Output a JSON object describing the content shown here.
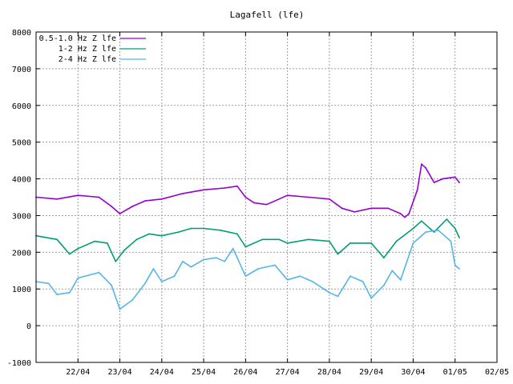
{
  "chart_data": {
    "type": "line",
    "title": "Lagafell (lfe)",
    "xlabel": "",
    "ylabel": "",
    "ylim": [
      -1000,
      8000
    ],
    "yticks": [
      -1000,
      0,
      1000,
      2000,
      3000,
      4000,
      5000,
      6000,
      7000,
      8000
    ],
    "xlim_days": [
      21.0,
      32.0
    ],
    "xticks": [
      {
        "label": "22/04",
        "day": 22
      },
      {
        "label": "23/04",
        "day": 23
      },
      {
        "label": "24/04",
        "day": 24
      },
      {
        "label": "25/04",
        "day": 25
      },
      {
        "label": "26/04",
        "day": 26
      },
      {
        "label": "27/04",
        "day": 27
      },
      {
        "label": "28/04",
        "day": 28
      },
      {
        "label": "29/04",
        "day": 29
      },
      {
        "label": "30/04",
        "day": 30
      },
      {
        "label": "01/05",
        "day": 31
      },
      {
        "label": "02/05",
        "day": 32
      }
    ],
    "grid": true,
    "legend_position": "top-left",
    "series": [
      {
        "name": "0.5-1.0 Hz Z lfe",
        "color": "#9400d3",
        "points": [
          [
            21.0,
            3500
          ],
          [
            21.5,
            3450
          ],
          [
            22.0,
            3550
          ],
          [
            22.5,
            3500
          ],
          [
            22.8,
            3250
          ],
          [
            23.0,
            3050
          ],
          [
            23.3,
            3250
          ],
          [
            23.6,
            3400
          ],
          [
            24.0,
            3450
          ],
          [
            24.5,
            3600
          ],
          [
            25.0,
            3700
          ],
          [
            25.5,
            3750
          ],
          [
            25.8,
            3800
          ],
          [
            26.0,
            3500
          ],
          [
            26.2,
            3350
          ],
          [
            26.5,
            3300
          ],
          [
            27.0,
            3550
          ],
          [
            27.5,
            3500
          ],
          [
            28.0,
            3450
          ],
          [
            28.3,
            3200
          ],
          [
            28.6,
            3100
          ],
          [
            29.0,
            3200
          ],
          [
            29.4,
            3200
          ],
          [
            29.7,
            3050
          ],
          [
            29.8,
            2950
          ],
          [
            29.9,
            3050
          ],
          [
            30.1,
            3700
          ],
          [
            30.2,
            4400
          ],
          [
            30.3,
            4300
          ],
          [
            30.5,
            3900
          ],
          [
            30.7,
            4000
          ],
          [
            31.0,
            4050
          ],
          [
            31.1,
            3900
          ]
        ]
      },
      {
        "name": "1-2 Hz Z lfe",
        "color": "#009e73",
        "points": [
          [
            21.0,
            2450
          ],
          [
            21.5,
            2350
          ],
          [
            21.8,
            1950
          ],
          [
            22.0,
            2100
          ],
          [
            22.4,
            2300
          ],
          [
            22.7,
            2250
          ],
          [
            22.9,
            1750
          ],
          [
            23.1,
            2050
          ],
          [
            23.4,
            2350
          ],
          [
            23.7,
            2500
          ],
          [
            24.0,
            2450
          ],
          [
            24.4,
            2550
          ],
          [
            24.7,
            2650
          ],
          [
            25.0,
            2650
          ],
          [
            25.4,
            2600
          ],
          [
            25.8,
            2500
          ],
          [
            26.0,
            2150
          ],
          [
            26.4,
            2350
          ],
          [
            26.8,
            2350
          ],
          [
            27.0,
            2250
          ],
          [
            27.5,
            2350
          ],
          [
            28.0,
            2300
          ],
          [
            28.2,
            1950
          ],
          [
            28.5,
            2250
          ],
          [
            29.0,
            2250
          ],
          [
            29.3,
            1850
          ],
          [
            29.6,
            2300
          ],
          [
            30.0,
            2650
          ],
          [
            30.2,
            2850
          ],
          [
            30.5,
            2550
          ],
          [
            30.8,
            2900
          ],
          [
            31.0,
            2650
          ],
          [
            31.1,
            2400
          ]
        ]
      },
      {
        "name": "2-4 Hz Z lfe",
        "color": "#56b4e9",
        "points": [
          [
            21.0,
            1200
          ],
          [
            21.3,
            1150
          ],
          [
            21.5,
            850
          ],
          [
            21.8,
            900
          ],
          [
            22.0,
            1300
          ],
          [
            22.5,
            1450
          ],
          [
            22.8,
            1100
          ],
          [
            23.0,
            450
          ],
          [
            23.3,
            700
          ],
          [
            23.6,
            1150
          ],
          [
            23.8,
            1550
          ],
          [
            24.0,
            1200
          ],
          [
            24.3,
            1350
          ],
          [
            24.5,
            1750
          ],
          [
            24.7,
            1600
          ],
          [
            25.0,
            1800
          ],
          [
            25.3,
            1850
          ],
          [
            25.5,
            1750
          ],
          [
            25.7,
            2100
          ],
          [
            26.0,
            1350
          ],
          [
            26.3,
            1550
          ],
          [
            26.7,
            1650
          ],
          [
            27.0,
            1250
          ],
          [
            27.3,
            1350
          ],
          [
            27.6,
            1200
          ],
          [
            28.0,
            900
          ],
          [
            28.2,
            800
          ],
          [
            28.5,
            1350
          ],
          [
            28.8,
            1200
          ],
          [
            29.0,
            750
          ],
          [
            29.3,
            1100
          ],
          [
            29.5,
            1500
          ],
          [
            29.7,
            1250
          ],
          [
            30.0,
            2250
          ],
          [
            30.3,
            2550
          ],
          [
            30.6,
            2600
          ],
          [
            30.9,
            2300
          ],
          [
            31.0,
            1650
          ],
          [
            31.1,
            1550
          ]
        ]
      }
    ]
  }
}
